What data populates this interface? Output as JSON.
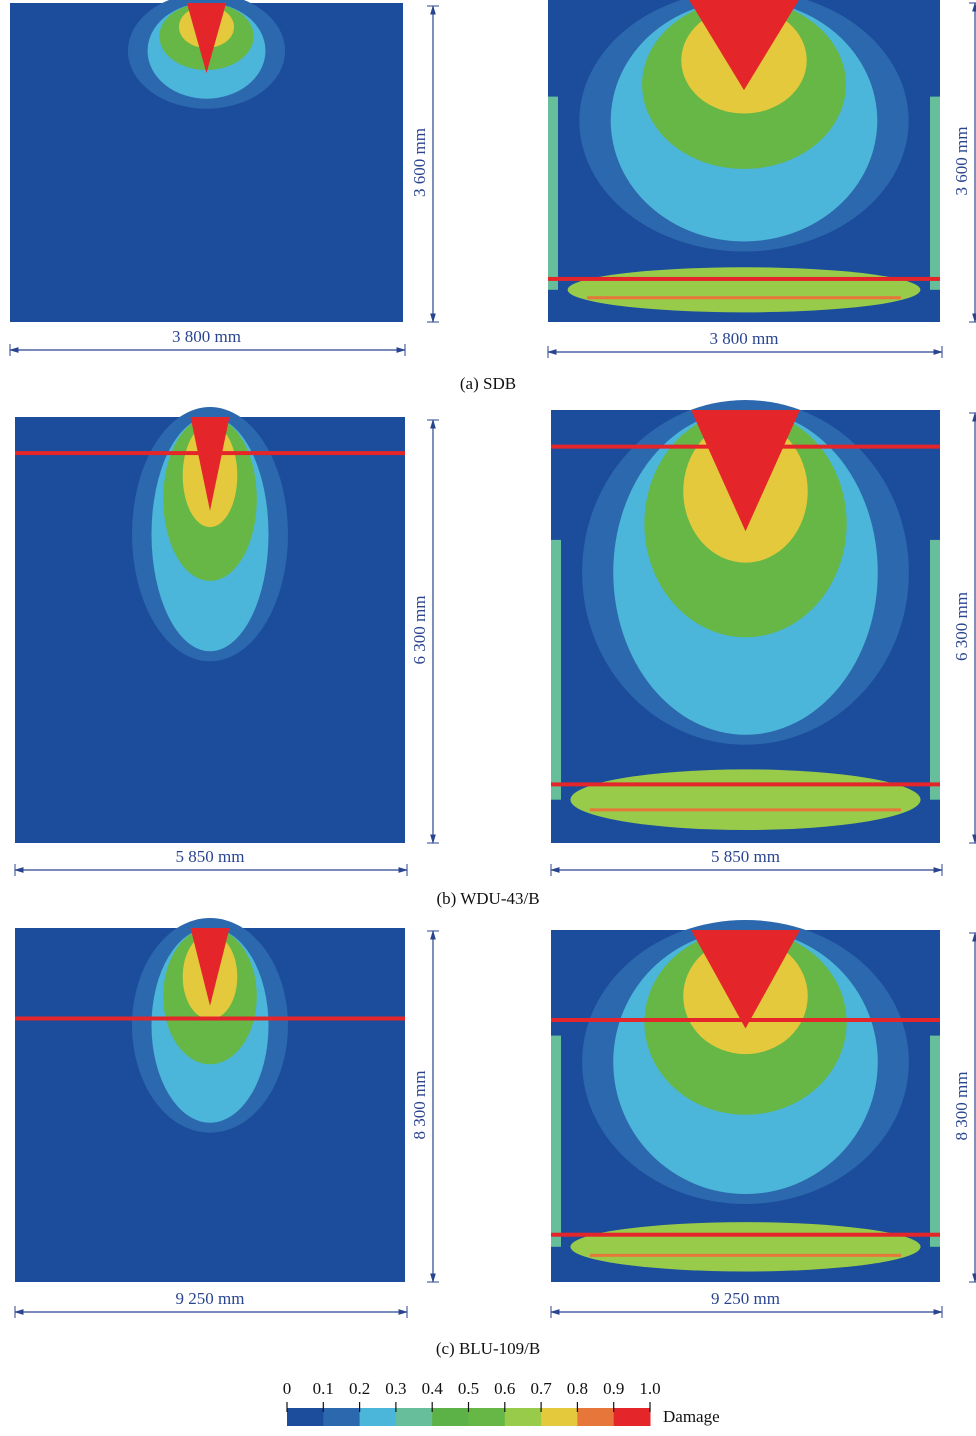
{
  "panels": [
    {
      "caption": "(a) SDB",
      "left": {
        "height_label": "3 600 mm",
        "width_label": "3 800 mm"
      },
      "right": {
        "height_label": "3 600 mm",
        "width_label": "3 800 mm"
      }
    },
    {
      "caption": "(b) WDU-43/B",
      "left": {
        "height_label": "6 300 mm",
        "width_label": "5 850 mm"
      },
      "right": {
        "height_label": "6 300 mm",
        "width_label": "5 850 mm"
      }
    },
    {
      "caption": "(c) BLU-109/B",
      "left": {
        "height_label": "8 300 mm",
        "width_label": "9 250 mm"
      },
      "right": {
        "height_label": "8 300 mm",
        "width_label": "9 250 mm"
      }
    }
  ],
  "colorbar": {
    "label": "Damage",
    "ticks": [
      "0",
      "0.1",
      "0.2",
      "0.3",
      "0.4",
      "0.5",
      "0.6",
      "0.7",
      "0.8",
      "0.9",
      "1.0"
    ],
    "colors": [
      "#1c4d9c",
      "#2c68ad",
      "#4cb5da",
      "#66bf9a",
      "#5cb247",
      "#66b746",
      "#98cb4a",
      "#e4c93c",
      "#e7763a",
      "#e4262b"
    ]
  }
}
